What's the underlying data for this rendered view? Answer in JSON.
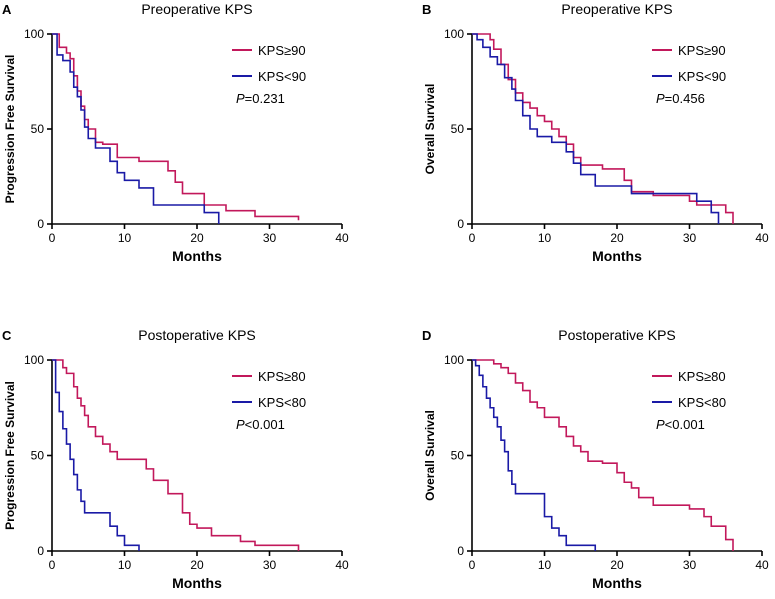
{
  "colors": {
    "group_high": "#c2185b",
    "group_low": "#1a1aa6",
    "axis": "#000000"
  },
  "chart_data": [
    {
      "panel": "A",
      "type": "line",
      "title": "Preoperative KPS",
      "xlabel": "Months",
      "ylabel": "Progression Free Survival",
      "xlim": [
        0,
        40
      ],
      "ylim": [
        0,
        100
      ],
      "xticks": [
        0,
        10,
        20,
        30,
        40
      ],
      "yticks": [
        0,
        50,
        100
      ],
      "p_prefix": "P",
      "p_value": "=0.231",
      "series": [
        {
          "name": "KPS≥90",
          "key": "high",
          "step": true,
          "x": [
            0,
            1,
            2,
            2.5,
            3,
            3.5,
            4,
            4.5,
            5,
            6,
            7,
            9,
            12,
            16,
            17,
            18,
            21,
            24,
            28,
            34
          ],
          "y": [
            100,
            93,
            90,
            87,
            78,
            70,
            62,
            55,
            50,
            43,
            42,
            35,
            33,
            28,
            22,
            16,
            10,
            7,
            4,
            2
          ]
        },
        {
          "name": "KPS<90",
          "key": "low",
          "step": true,
          "x": [
            0,
            0.7,
            1.5,
            2.5,
            3,
            3.5,
            4,
            4.5,
            5,
            6,
            8,
            9,
            10,
            12,
            14,
            20,
            21,
            23
          ],
          "y": [
            100,
            89,
            86,
            80,
            72,
            67,
            60,
            51,
            45,
            40,
            33,
            27,
            23,
            19,
            10,
            10,
            6,
            0
          ]
        }
      ]
    },
    {
      "panel": "B",
      "type": "line",
      "title": "Preoperative KPS",
      "xlabel": "Months",
      "ylabel": "Overall Survival",
      "xlim": [
        0,
        40
      ],
      "ylim": [
        0,
        100
      ],
      "xticks": [
        0,
        10,
        20,
        30,
        40
      ],
      "yticks": [
        0,
        50,
        100
      ],
      "p_prefix": "P",
      "p_value": "=0.456",
      "series": [
        {
          "name": "KPS≥90",
          "key": "high",
          "step": true,
          "x": [
            0,
            2.5,
            3,
            4,
            5,
            6,
            7,
            8,
            9,
            10,
            11,
            12,
            13,
            14,
            15,
            18,
            21,
            22,
            25,
            30,
            31,
            35,
            36
          ],
          "y": [
            100,
            97,
            92,
            84,
            76,
            69,
            64,
            61,
            57,
            54,
            50,
            46,
            42,
            35,
            31,
            29,
            23,
            17,
            15,
            12,
            10,
            6,
            0
          ]
        },
        {
          "name": "KPS<90",
          "key": "low",
          "step": true,
          "x": [
            0,
            0.7,
            1.5,
            2.5,
            3.5,
            4.5,
            5.5,
            6,
            7,
            8,
            9,
            11,
            13,
            14,
            15,
            17,
            22,
            31,
            33,
            34
          ],
          "y": [
            100,
            97,
            93,
            88,
            84,
            77,
            71,
            65,
            57,
            50,
            46,
            43,
            38,
            32,
            26,
            20,
            16,
            12,
            6,
            0
          ]
        }
      ]
    },
    {
      "panel": "C",
      "type": "line",
      "title": "Postoperative KPS",
      "xlabel": "Months",
      "ylabel": "Progression Free Survival",
      "xlim": [
        0,
        40
      ],
      "ylim": [
        0,
        100
      ],
      "xticks": [
        0,
        10,
        20,
        30,
        40
      ],
      "yticks": [
        0,
        50,
        100
      ],
      "p_prefix": "P",
      "p_value": "<0.001",
      "series": [
        {
          "name": "KPS≥80",
          "key": "high",
          "step": true,
          "x": [
            0,
            1.5,
            2,
            3,
            3.5,
            4,
            4.5,
            5,
            6,
            7,
            8,
            9,
            13,
            14,
            16,
            18,
            19,
            20,
            22,
            26,
            28,
            34
          ],
          "y": [
            100,
            96,
            93,
            86,
            80,
            76,
            71,
            65,
            60,
            56,
            52,
            48,
            43,
            37,
            30,
            20,
            14,
            12,
            8,
            5,
            3,
            0
          ]
        },
        {
          "name": "KPS<80",
          "key": "low",
          "step": true,
          "x": [
            0,
            0.5,
            1,
            1.5,
            2,
            2.5,
            3,
            3.5,
            4,
            4.5,
            5.5,
            6,
            8,
            9,
            10,
            12
          ],
          "y": [
            100,
            83,
            73,
            64,
            56,
            48,
            40,
            32,
            26,
            20,
            20,
            20,
            13,
            8,
            3,
            0
          ]
        }
      ]
    },
    {
      "panel": "D",
      "type": "line",
      "title": "Postoperative KPS",
      "xlabel": "Months",
      "ylabel": "Overall Survival",
      "xlim": [
        0,
        40
      ],
      "ylim": [
        0,
        100
      ],
      "xticks": [
        0,
        10,
        20,
        30,
        40
      ],
      "yticks": [
        0,
        50,
        100
      ],
      "p_prefix": "P",
      "p_value": "<0.001",
      "series": [
        {
          "name": "KPS≥80",
          "key": "high",
          "step": true,
          "x": [
            0,
            3,
            4,
            5,
            6,
            7,
            8,
            9,
            10,
            12,
            13,
            14,
            15,
            16,
            18,
            20,
            21,
            22,
            23,
            25,
            30,
            32,
            33,
            35,
            36
          ],
          "y": [
            100,
            98,
            96,
            93,
            88,
            84,
            78,
            75,
            70,
            65,
            60,
            55,
            52,
            47,
            46,
            41,
            36,
            33,
            28,
            24,
            22,
            18,
            13,
            6,
            0
          ]
        },
        {
          "name": "KPS<80",
          "key": "low",
          "step": true,
          "x": [
            0,
            0.5,
            1,
            1.5,
            2,
            2.5,
            3,
            3.5,
            4,
            4.5,
            5,
            5.5,
            6,
            10,
            11,
            12,
            13,
            17
          ],
          "y": [
            100,
            97,
            92,
            86,
            80,
            75,
            70,
            65,
            58,
            52,
            42,
            35,
            30,
            18,
            12,
            8,
            3,
            0
          ]
        }
      ]
    }
  ]
}
